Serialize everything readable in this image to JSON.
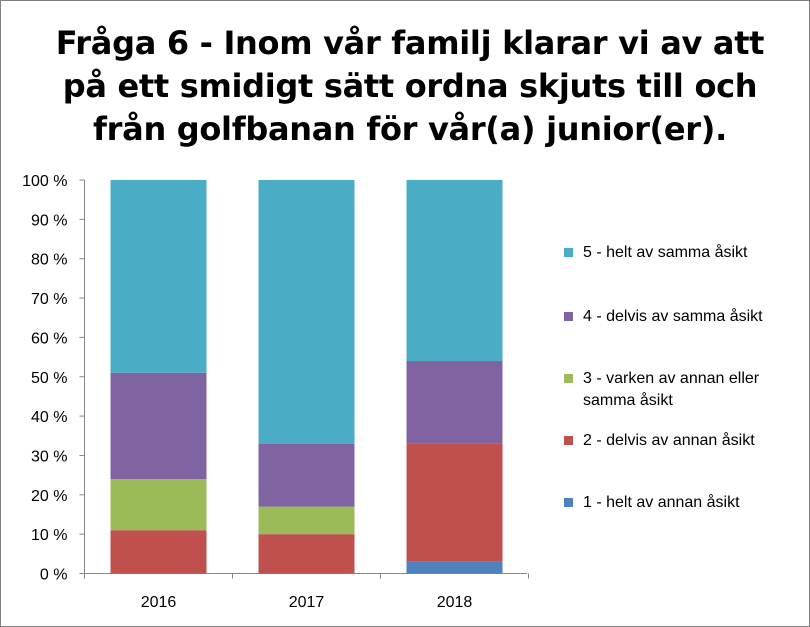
{
  "chart_data": {
    "type": "bar",
    "stacked": true,
    "normalized": true,
    "title": "Fråga 6 - Inom vår familj klarar vi av att\npå ett smidigt sätt ordna skjuts till och\nfrån golfbanan för vår(a) junior(er).",
    "categories": [
      "2016",
      "2017",
      "2018"
    ],
    "ylim": [
      0,
      100
    ],
    "yticks": [
      "0 %",
      "10 %",
      "20 %",
      "30 %",
      "40 %",
      "50 %",
      "60 %",
      "70 %",
      "80 %",
      "90 %",
      "100 %"
    ],
    "legend_position": "right",
    "series": [
      {
        "name": "1 - helt av annan åsikt",
        "color": "#4f81bd",
        "values": [
          0,
          0,
          3
        ]
      },
      {
        "name": "2 - delvis av annan åsikt",
        "color": "#c0504d",
        "values": [
          11,
          10,
          30
        ]
      },
      {
        "name": "3 - varken av annan eller samma åsikt",
        "color": "#9bbb59",
        "values": [
          13,
          7,
          0
        ]
      },
      {
        "name": "4 - delvis av samma åsikt",
        "color": "#8064a2",
        "values": [
          27,
          16,
          21
        ]
      },
      {
        "name": "5 - helt av samma åsikt",
        "color": "#4bacc6",
        "values": [
          49,
          67,
          46
        ]
      }
    ]
  }
}
